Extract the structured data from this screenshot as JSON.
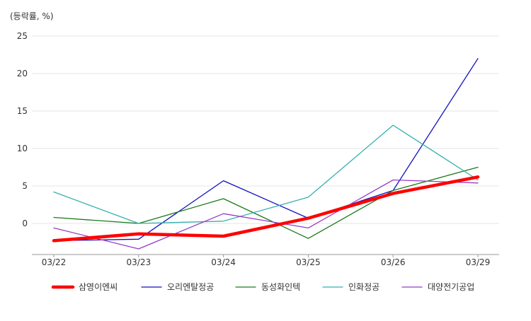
{
  "chart_data": {
    "type": "line",
    "ylabel": "(등락률, %)",
    "x": [
      "03/22",
      "03/23",
      "03/24",
      "03/25",
      "03/26",
      "03/29"
    ],
    "yticks": [
      0,
      5,
      10,
      15,
      20,
      25
    ],
    "ylim": [
      -4,
      25
    ],
    "grid": true,
    "legend_position": "bottom",
    "series": [
      {
        "name": "삼영이엔씨",
        "color": "#ff0000",
        "values": [
          -2.3,
          -1.4,
          -1.7,
          0.7,
          4.0,
          6.2
        ]
      },
      {
        "name": "오리엔탈정공",
        "color": "#1010c0",
        "values": [
          -2.3,
          -2.1,
          5.7,
          0.7,
          4.4,
          22.0
        ]
      },
      {
        "name": "동성화인텍",
        "color": "#1a7a1a",
        "values": [
          0.8,
          0.0,
          3.3,
          -2.0,
          4.4,
          7.5
        ]
      },
      {
        "name": "인화정공",
        "color": "#36b0b0",
        "values": [
          4.2,
          0.0,
          0.3,
          3.5,
          13.1,
          5.8
        ]
      },
      {
        "name": "대양전기공업",
        "color": "#9a3ac8",
        "values": [
          -0.6,
          -3.4,
          1.3,
          -0.6,
          5.8,
          5.4
        ]
      }
    ]
  }
}
